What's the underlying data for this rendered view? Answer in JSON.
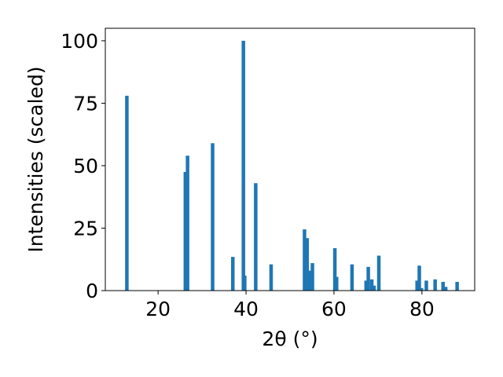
{
  "chart_data": {
    "type": "bar",
    "xlabel": "2θ (°)",
    "ylabel": "Intensities (scaled)",
    "xlim": [
      8,
      92
    ],
    "ylim": [
      0,
      105
    ],
    "xticks": [
      20,
      40,
      60,
      80
    ],
    "yticks": [
      0,
      25,
      50,
      75,
      100
    ],
    "bar_color": "#1f77b4",
    "x": [
      12.9,
      26.2,
      26.7,
      32.4,
      37.0,
      39.4,
      39.7,
      42.2,
      45.7,
      53.3,
      53.9,
      54.6,
      55.1,
      60.2,
      60.6,
      64.1,
      67.3,
      67.8,
      68.6,
      69.1,
      70.2,
      78.9,
      79.4,
      79.9,
      81.0,
      83.0,
      84.8,
      85.4,
      88.0
    ],
    "values": [
      78,
      47.5,
      54,
      59,
      13.5,
      100,
      6,
      43,
      10.5,
      24.5,
      21,
      8,
      11,
      17,
      5.5,
      10.5,
      4,
      9.5,
      4.5,
      2,
      14,
      4,
      10,
      1,
      4,
      4.5,
      3.5,
      1.5,
      3.5
    ]
  }
}
